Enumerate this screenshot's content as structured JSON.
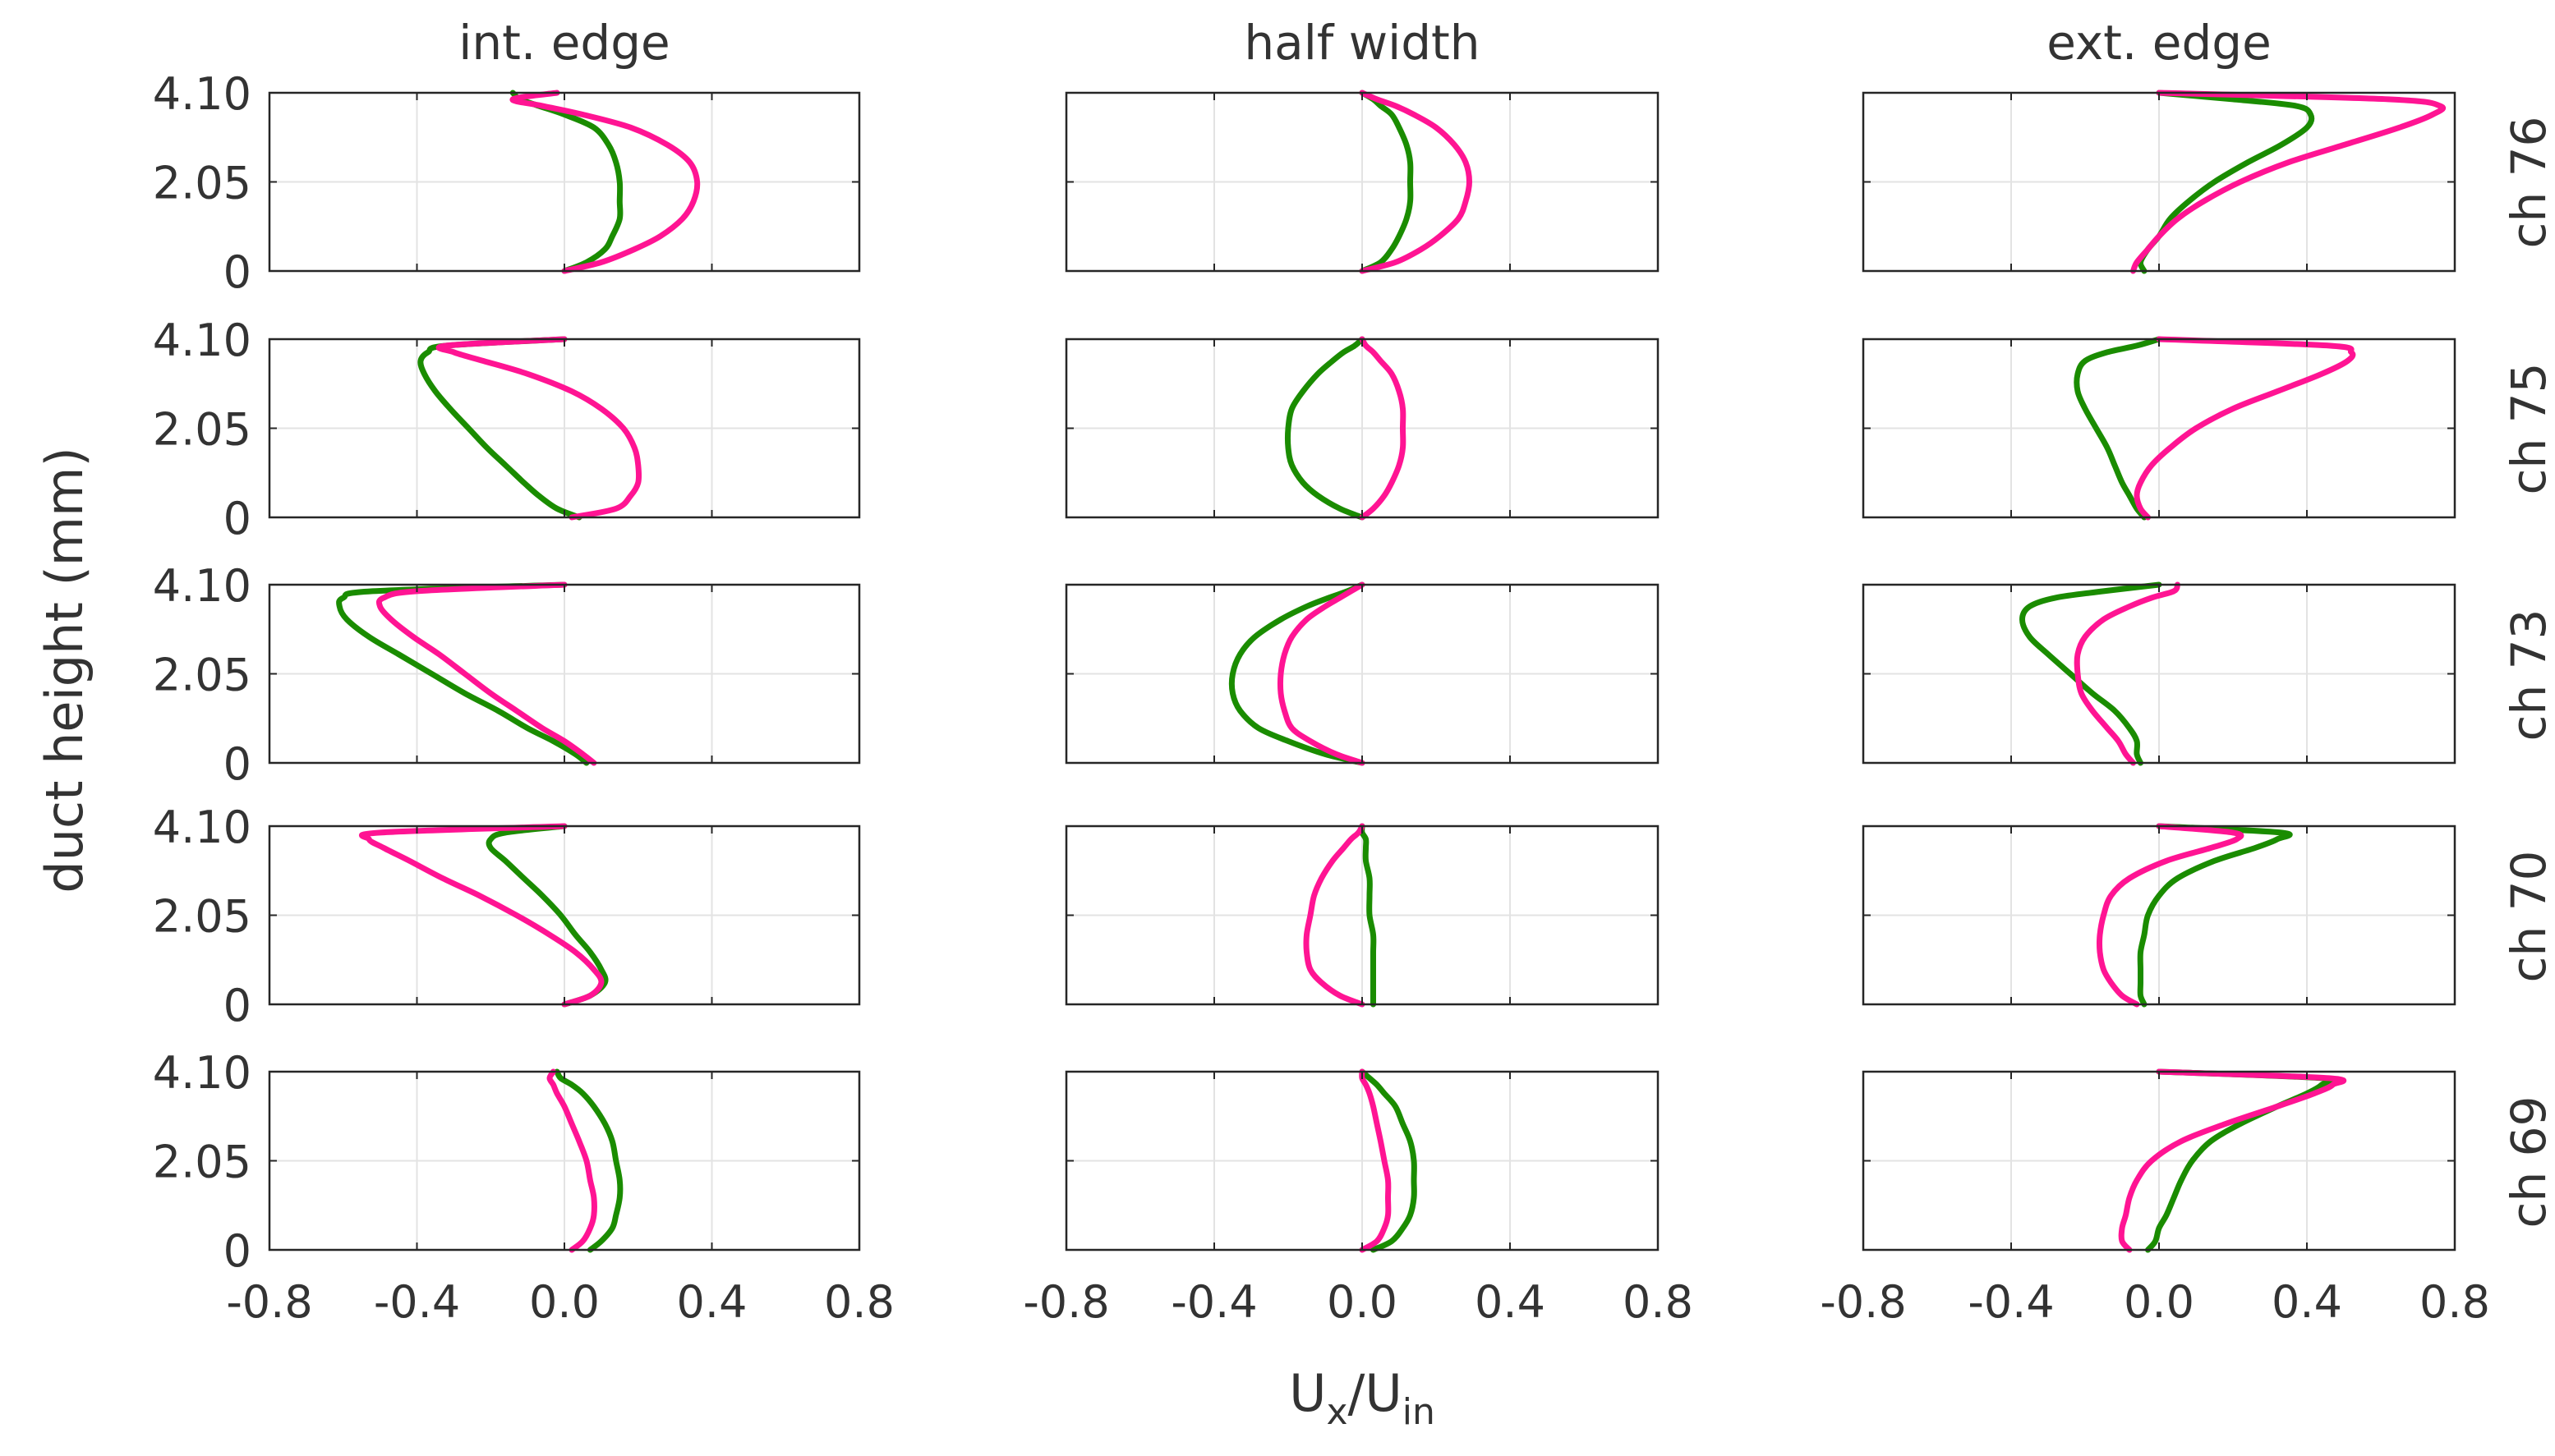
{
  "chart_data": {
    "type": "line",
    "ylabel": "duct height (mm)",
    "xlabel_main": "U",
    "xlabel_sub1": "x",
    "xlabel_slash": "/U",
    "xlabel_sub2": "in",
    "xlim": [
      -0.8,
      0.8
    ],
    "ylim": [
      0,
      4.1
    ],
    "xticks": [
      -0.8,
      -0.4,
      0.0,
      0.4,
      0.8
    ],
    "xtick_labels": [
      "-0.8",
      "-0.4",
      "0.0",
      "0.4",
      "0.8"
    ],
    "yticks": [
      0,
      2.05,
      4.1
    ],
    "ytick_labels": [
      "0",
      "2.05",
      "4.10"
    ],
    "columns": [
      "int. edge",
      "half width",
      "ext. edge"
    ],
    "rows": [
      "ch 76",
      "ch 75",
      "ch 73",
      "ch 70",
      "ch 69"
    ],
    "series_colors": {
      "green": "#1a8c00",
      "magenta": "#ff1493"
    },
    "profile_heights": [
      0,
      0.2,
      0.5,
      0.8,
      1.2,
      1.6,
      2.05,
      2.5,
      2.9,
      3.3,
      3.6,
      3.8,
      3.95,
      4.1
    ],
    "panels": [
      [
        {
          "green": [
            0.0,
            0.06,
            0.11,
            0.13,
            0.15,
            0.15,
            0.15,
            0.14,
            0.12,
            0.08,
            0.0,
            -0.07,
            -0.12,
            -0.14
          ],
          "magenta": [
            0.0,
            0.1,
            0.19,
            0.26,
            0.32,
            0.35,
            0.36,
            0.34,
            0.28,
            0.18,
            0.05,
            -0.06,
            -0.14,
            -0.02
          ]
        },
        {
          "green": [
            0.0,
            0.05,
            0.08,
            0.1,
            0.12,
            0.13,
            0.13,
            0.13,
            0.12,
            0.1,
            0.08,
            0.05,
            0.03,
            0.0
          ],
          "magenta": [
            0.0,
            0.09,
            0.16,
            0.21,
            0.26,
            0.28,
            0.29,
            0.28,
            0.25,
            0.2,
            0.14,
            0.09,
            0.04,
            0.0
          ]
        },
        {
          "green": [
            -0.04,
            -0.05,
            -0.03,
            0.0,
            0.03,
            0.08,
            0.15,
            0.24,
            0.33,
            0.4,
            0.41,
            0.37,
            0.2,
            0.0
          ],
          "magenta": [
            -0.07,
            -0.06,
            -0.03,
            0.0,
            0.05,
            0.12,
            0.22,
            0.35,
            0.5,
            0.65,
            0.74,
            0.76,
            0.62,
            0.0
          ]
        }
      ],
      [
        {
          "green": [
            0.04,
            -0.02,
            -0.07,
            -0.11,
            -0.16,
            -0.21,
            -0.26,
            -0.31,
            -0.35,
            -0.38,
            -0.39,
            -0.37,
            -0.32,
            0.0
          ],
          "magenta": [
            0.02,
            0.14,
            0.18,
            0.2,
            0.2,
            0.19,
            0.16,
            0.1,
            0.02,
            -0.1,
            -0.22,
            -0.3,
            -0.32,
            0.0
          ]
        },
        {
          "green": [
            0.0,
            -0.06,
            -0.12,
            -0.16,
            -0.19,
            -0.2,
            -0.2,
            -0.19,
            -0.16,
            -0.12,
            -0.08,
            -0.05,
            -0.02,
            0.0
          ],
          "magenta": [
            0.0,
            0.03,
            0.06,
            0.08,
            0.1,
            0.11,
            0.11,
            0.11,
            0.1,
            0.08,
            0.05,
            0.03,
            0.01,
            0.0
          ]
        },
        {
          "green": [
            -0.04,
            -0.06,
            -0.08,
            -0.1,
            -0.12,
            -0.14,
            -0.17,
            -0.2,
            -0.22,
            -0.22,
            -0.2,
            -0.14,
            -0.06,
            0.0
          ],
          "magenta": [
            -0.03,
            -0.05,
            -0.06,
            -0.05,
            -0.02,
            0.03,
            0.1,
            0.2,
            0.32,
            0.44,
            0.51,
            0.52,
            0.46,
            0.0
          ]
        }
      ],
      [
        {
          "green": [
            0.06,
            0.03,
            -0.03,
            -0.1,
            -0.18,
            -0.27,
            -0.36,
            -0.45,
            -0.53,
            -0.59,
            -0.61,
            -0.6,
            -0.52,
            0.0
          ],
          "magenta": [
            0.08,
            0.05,
            0.0,
            -0.06,
            -0.13,
            -0.2,
            -0.27,
            -0.34,
            -0.41,
            -0.47,
            -0.5,
            -0.49,
            -0.4,
            0.0
          ]
        },
        {
          "green": [
            0.0,
            -0.1,
            -0.2,
            -0.28,
            -0.33,
            -0.35,
            -0.35,
            -0.33,
            -0.29,
            -0.22,
            -0.15,
            -0.09,
            -0.04,
            0.0
          ],
          "magenta": [
            0.0,
            -0.07,
            -0.14,
            -0.19,
            -0.21,
            -0.22,
            -0.22,
            -0.21,
            -0.19,
            -0.15,
            -0.1,
            -0.06,
            -0.03,
            0.0
          ]
        },
        {
          "green": [
            -0.05,
            -0.06,
            -0.06,
            -0.08,
            -0.12,
            -0.18,
            -0.24,
            -0.3,
            -0.35,
            -0.37,
            -0.35,
            -0.28,
            -0.15,
            0.0
          ],
          "magenta": [
            -0.07,
            -0.09,
            -0.11,
            -0.14,
            -0.18,
            -0.21,
            -0.22,
            -0.22,
            -0.2,
            -0.15,
            -0.08,
            -0.02,
            0.04,
            0.05
          ]
        }
      ],
      [
        {
          "green": [
            0.0,
            0.07,
            0.11,
            0.1,
            0.07,
            0.03,
            -0.01,
            -0.06,
            -0.11,
            -0.16,
            -0.2,
            -0.2,
            -0.16,
            0.0
          ],
          "magenta": [
            0.0,
            0.07,
            0.1,
            0.08,
            0.03,
            -0.04,
            -0.13,
            -0.23,
            -0.33,
            -0.42,
            -0.49,
            -0.53,
            -0.5,
            0.0
          ]
        },
        {
          "green": [
            0.03,
            0.03,
            0.03,
            0.03,
            0.03,
            0.03,
            0.02,
            0.02,
            0.02,
            0.01,
            0.01,
            0.01,
            0.0,
            0.0
          ],
          "magenta": [
            0.0,
            -0.06,
            -0.11,
            -0.14,
            -0.15,
            -0.15,
            -0.14,
            -0.13,
            -0.11,
            -0.08,
            -0.05,
            -0.03,
            -0.01,
            0.0
          ]
        },
        {
          "green": [
            -0.04,
            -0.05,
            -0.05,
            -0.05,
            -0.05,
            -0.04,
            -0.03,
            0.0,
            0.05,
            0.15,
            0.26,
            0.32,
            0.33,
            0.0
          ],
          "magenta": [
            -0.06,
            -0.1,
            -0.13,
            -0.15,
            -0.16,
            -0.16,
            -0.15,
            -0.13,
            -0.08,
            0.02,
            0.14,
            0.21,
            0.2,
            0.0
          ]
        }
      ],
      [
        {
          "green": [
            0.07,
            0.1,
            0.13,
            0.14,
            0.15,
            0.15,
            0.14,
            0.13,
            0.11,
            0.08,
            0.05,
            0.02,
            -0.01,
            -0.02
          ],
          "magenta": [
            0.02,
            0.05,
            0.07,
            0.08,
            0.08,
            0.07,
            0.06,
            0.04,
            0.02,
            0.0,
            -0.02,
            -0.03,
            -0.04,
            -0.03
          ]
        },
        {
          "green": [
            0.03,
            0.08,
            0.11,
            0.13,
            0.14,
            0.14,
            0.14,
            0.13,
            0.11,
            0.09,
            0.06,
            0.04,
            0.02,
            0.0
          ],
          "magenta": [
            0.0,
            0.04,
            0.06,
            0.07,
            0.07,
            0.07,
            0.06,
            0.05,
            0.04,
            0.03,
            0.02,
            0.01,
            0.0,
            0.0
          ]
        },
        {
          "green": [
            -0.03,
            -0.01,
            0.0,
            0.02,
            0.04,
            0.06,
            0.09,
            0.14,
            0.22,
            0.32,
            0.4,
            0.44,
            0.44,
            0.0
          ],
          "magenta": [
            -0.08,
            -0.1,
            -0.1,
            -0.09,
            -0.08,
            -0.06,
            -0.02,
            0.06,
            0.18,
            0.32,
            0.42,
            0.47,
            0.46,
            0.0
          ]
        }
      ]
    ]
  }
}
